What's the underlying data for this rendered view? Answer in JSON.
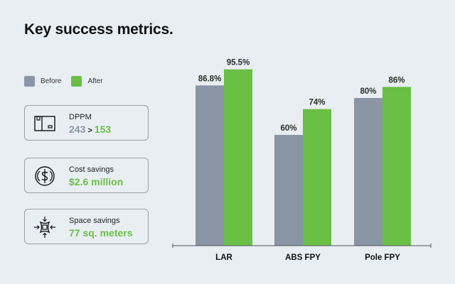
{
  "title": "Key success metrics.",
  "legend": [
    {
      "label": "Before",
      "color": "#8a95a5"
    },
    {
      "label": "After",
      "color": "#6abf45"
    }
  ],
  "cards": [
    {
      "icon": "box-icon",
      "label": "DPPM",
      "before": "243",
      "separator": ">",
      "after": "153"
    },
    {
      "icon": "dollar-coin-icon",
      "label": "Cost savings",
      "value": "$2.6 million"
    },
    {
      "icon": "compress-arrows-icon",
      "label": "Space savings",
      "value": "77 sq. meters"
    }
  ],
  "chart_data": {
    "type": "bar",
    "title": "",
    "xlabel": "",
    "ylabel": "",
    "ylim": [
      0,
      100
    ],
    "grid": false,
    "legend": "left",
    "categories": [
      "LAR",
      "ABS FPY",
      "Pole FPY"
    ],
    "series": [
      {
        "name": "Before",
        "color": "#8a95a5",
        "values": [
          86.8,
          60,
          80
        ],
        "labels": [
          "86.8%",
          "60%",
          "80%"
        ]
      },
      {
        "name": "After",
        "color": "#6abf45",
        "values": [
          95.5,
          74,
          86
        ],
        "labels": [
          "95.5%",
          "74%",
          "86%"
        ]
      }
    ]
  }
}
